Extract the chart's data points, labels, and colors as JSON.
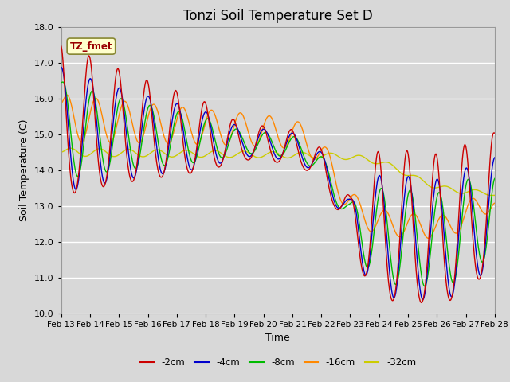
{
  "title": "Tonzi Soil Temperature Set D",
  "xlabel": "Time",
  "ylabel": "Soil Temperature (C)",
  "ylim": [
    10.0,
    18.0
  ],
  "yticks": [
    10.0,
    11.0,
    12.0,
    13.0,
    14.0,
    15.0,
    16.0,
    17.0,
    18.0
  ],
  "xtick_labels": [
    "Feb 13",
    "Feb 14",
    "Feb 15",
    "Feb 16",
    "Feb 17",
    "Feb 18",
    "Feb 19",
    "Feb 20",
    "Feb 21",
    "Feb 22",
    "Feb 23",
    "Feb 24",
    "Feb 25",
    "Feb 26",
    "Feb 27",
    "Feb 28"
  ],
  "legend_label": "TZ_fmet",
  "series_labels": [
    "-2cm",
    "-4cm",
    "-8cm",
    "-16cm",
    "-32cm"
  ],
  "series_colors": [
    "#cc0000",
    "#0000cc",
    "#00bb00",
    "#ff8800",
    "#cccc00"
  ],
  "background_color": "#d8d8d8",
  "plot_bg_color": "#d8d8d8",
  "grid_color": "#ffffff",
  "title_fontsize": 12,
  "label_fontsize": 9,
  "tick_fontsize": 8
}
